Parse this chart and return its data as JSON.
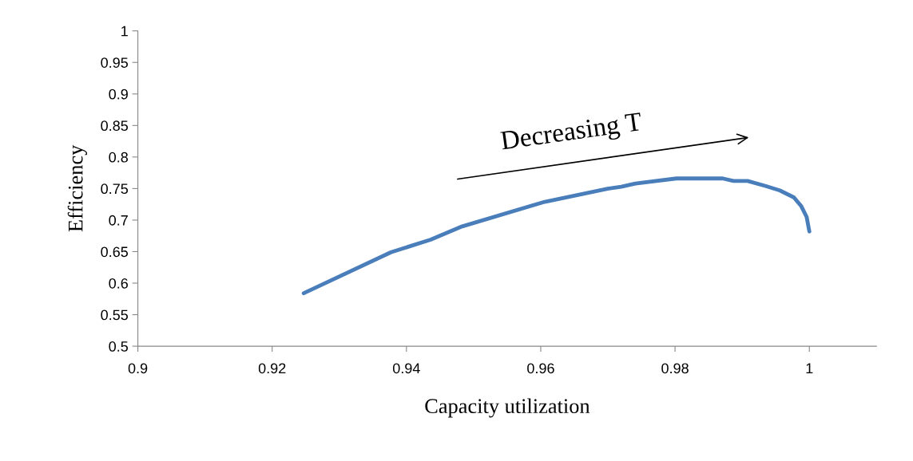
{
  "chart_data": {
    "type": "line",
    "xlabel": "Capacity utilization",
    "ylabel": "Efficiency",
    "annotations": [
      "Decreasing T"
    ],
    "x": [
      0.9247,
      0.9377,
      0.9436,
      0.9483,
      0.9606,
      0.9701,
      0.972,
      0.9741,
      0.9802,
      0.9871,
      0.9887,
      0.9908,
      0.9935,
      0.9956,
      0.9977,
      0.9988,
      0.9996,
      1.0
    ],
    "series": [
      {
        "color": "#4a7ebb",
        "values": [
          0.584,
          0.649,
          0.669,
          0.69,
          0.729,
          0.75,
          0.753,
          0.758,
          0.766,
          0.766,
          0.762,
          0.762,
          0.754,
          0.747,
          0.736,
          0.722,
          0.705,
          0.682
        ]
      }
    ],
    "xlim": [
      0.9,
      1.01
    ],
    "xticks": [
      0.9,
      0.92,
      0.94,
      0.96,
      0.98,
      1
    ],
    "ylim": [
      0.5,
      1
    ],
    "yticks": [
      0.5,
      0.55,
      0.6,
      0.65,
      0.7,
      0.75,
      0.8,
      0.85,
      0.9,
      0.95,
      1
    ],
    "grid": false,
    "legend": false,
    "marker": "none",
    "line_style": "solid"
  }
}
